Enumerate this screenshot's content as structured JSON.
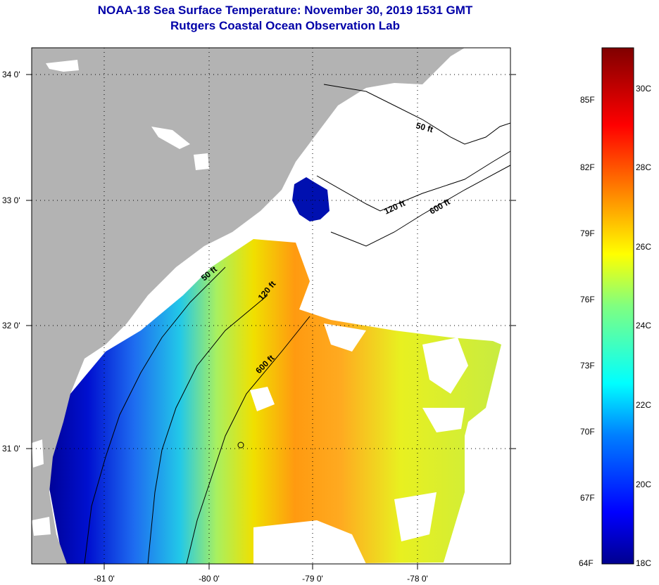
{
  "header": {
    "title": "NOAA-18 Sea Surface Temperature:  November 30, 2019 1531 GMT",
    "subtitle": "Rutgers Coastal Ocean Observation Lab"
  },
  "map": {
    "lat_labels": [
      "34 0'",
      "33 0'",
      "32 0'",
      "31 0'"
    ],
    "lon_labels": [
      "-81 0'",
      "-80 0'",
      "-79 0'",
      "-78 0'"
    ],
    "contours": {
      "c50_top": "50 ft",
      "c120_top": "120 ft",
      "c600_top": "600 ft",
      "c50_mid": "50 ft",
      "c120_mid": "120 ft",
      "c600_mid": "600 ft"
    }
  },
  "colorbar": {
    "fahrenheit": [
      "85F",
      "82F",
      "79F",
      "76F",
      "73F",
      "70F",
      "67F",
      "64F"
    ],
    "celsius": [
      "30C",
      "28C",
      "26C",
      "24C",
      "22C",
      "20C",
      "18C"
    ]
  },
  "colors": {
    "land": "#b3b3b3",
    "cloud": "#ffffff",
    "grid": "#000000",
    "title": "#0000a8"
  }
}
